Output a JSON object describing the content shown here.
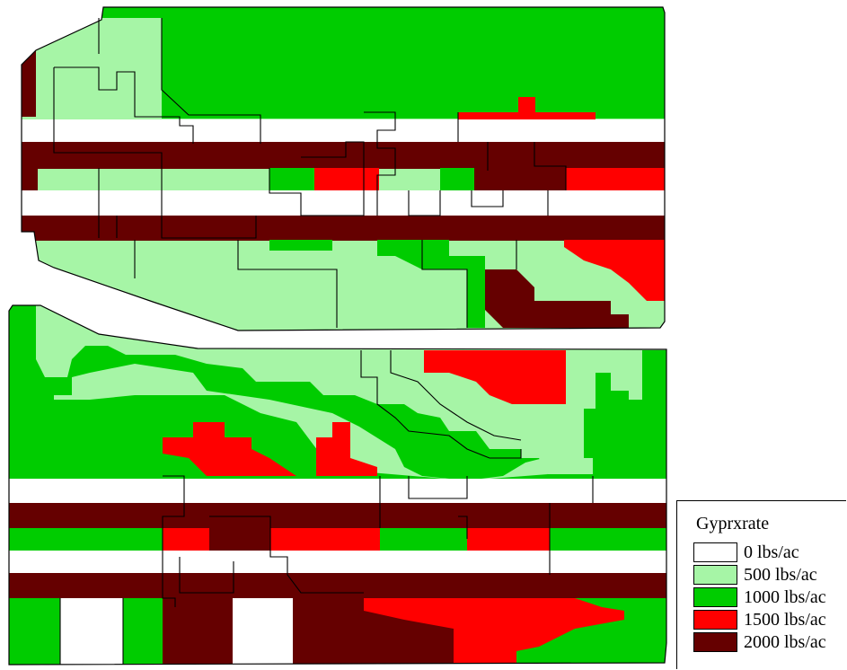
{
  "legend": {
    "title": "Gyprxrate",
    "items": [
      {
        "label": "0 lbs/ac",
        "color": "#ffffff"
      },
      {
        "label": "500 lbs/ac",
        "color": "#a6f5a6"
      },
      {
        "label": "1000 lbs/ac",
        "color": "#00cc00"
      },
      {
        "label": "1500 lbs/ac",
        "color": "#ff0000"
      },
      {
        "label": "2000 lbs/ac",
        "color": "#650000"
      }
    ]
  },
  "colors": {
    "r0": "#ffffff",
    "r500": "#a6f5a6",
    "r1000": "#00cc00",
    "r1500": "#ff0000",
    "r2000": "#650000",
    "outline": "#000000"
  }
}
